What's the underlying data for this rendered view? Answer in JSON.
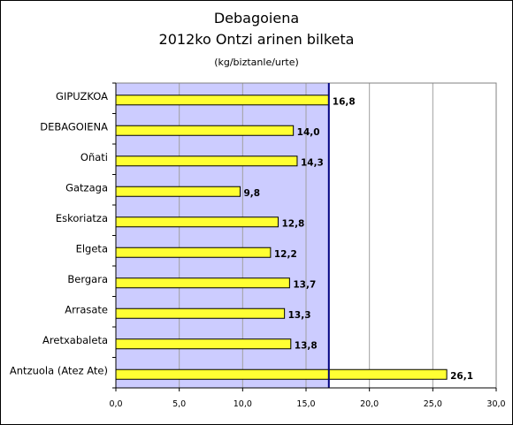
{
  "chart_data": {
    "type": "bar",
    "orientation": "horizontal",
    "title": "Debagoiena",
    "subtitle": "2012ko Ontzi arinen bilketa",
    "unit_label": "(kg/biztanle/urte)",
    "categories": [
      "GIPUZKOA",
      "DEBAGOIENA",
      "Oñati",
      "Gatzaga",
      "Eskoriatza",
      "Elgeta",
      "Bergara",
      "Arrasate",
      "Aretxabaleta",
      "Antzuola (Atez Ate)"
    ],
    "values": [
      16.8,
      14.0,
      14.3,
      9.8,
      12.8,
      12.2,
      13.7,
      13.3,
      13.8,
      26.1
    ],
    "value_labels": [
      "16,8",
      "14,0",
      "14,3",
      "9,8",
      "12,8",
      "12,2",
      "13,7",
      "13,3",
      "13,8",
      "26,1"
    ],
    "xlim": [
      0,
      30
    ],
    "x_ticks": [
      0,
      5,
      10,
      15,
      20,
      25,
      30
    ],
    "x_tick_labels": [
      "0,0",
      "5,0",
      "10,0",
      "15,0",
      "20,0",
      "25,0",
      "30,0"
    ],
    "reference_line": 16.8,
    "shaded_region": [
      0,
      16.8
    ],
    "grid": "vertical",
    "legend": "none",
    "colors": {
      "bar": "#ffff33",
      "bar_edge": "#000000",
      "shaded_bg": "#ccccff",
      "reference_line": "#000080",
      "grid": "#a0a0a0"
    }
  }
}
